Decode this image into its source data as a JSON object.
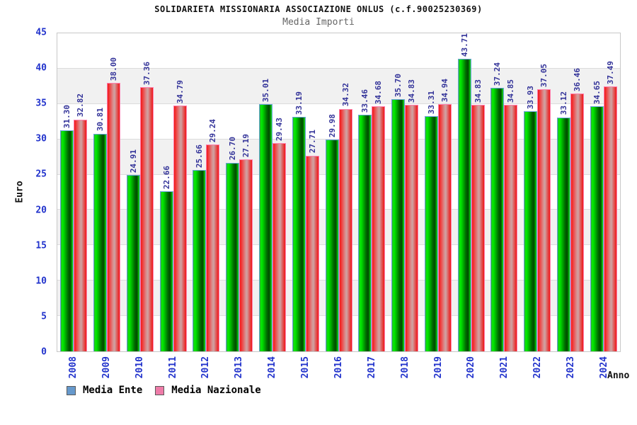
{
  "chart_data": {
    "type": "bar",
    "title": "SOLIDARIETA MISSIONARIA ASSOCIAZIONE ONLUS (c.f.90025230369)",
    "subtitle": "Media Importi",
    "xlabel": "Anno",
    "ylabel": "Euro",
    "ylim": [
      0,
      45
    ],
    "yticks": [
      0,
      5,
      10,
      15,
      20,
      25,
      30,
      35,
      40,
      45
    ],
    "grid": "horizontal gridlines every 5, alternating white/gray bands",
    "legend_position": "bottom-left",
    "value_label_format": "two decimals, rotated 90deg above bar",
    "categories": [
      "2008",
      "2009",
      "2010",
      "2011",
      "2012",
      "2013",
      "2014",
      "2015",
      "2016",
      "2017",
      "2018",
      "2019",
      "2020",
      "2021",
      "2022",
      "2023",
      "2024"
    ],
    "series": [
      {
        "name": "Media Ente",
        "legend_color": "#6699cc",
        "bar_style": "green-cylinder",
        "values": [
          31.3,
          30.81,
          24.91,
          22.66,
          25.66,
          26.7,
          35.01,
          33.19,
          29.98,
          33.46,
          35.7,
          33.31,
          43.71,
          37.24,
          33.93,
          33.12,
          34.65
        ]
      },
      {
        "name": "Media Nazionale",
        "legend_color": "#ee7ba8",
        "bar_style": "red-cylinder",
        "values": [
          32.82,
          38.0,
          37.36,
          34.79,
          29.24,
          27.19,
          29.43,
          27.71,
          34.32,
          34.68,
          34.83,
          34.94,
          34.83,
          34.85,
          37.05,
          36.46,
          37.49
        ]
      }
    ],
    "colors": {
      "tick_label": "#2233cc",
      "value_label": "#333399",
      "band": "#f1f1f1",
      "gridline": "#dcdcdc",
      "plot_border": "#c8c8c8"
    }
  }
}
